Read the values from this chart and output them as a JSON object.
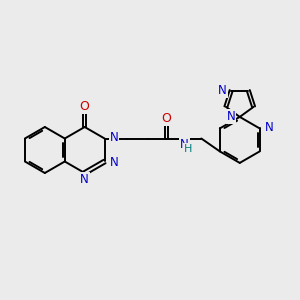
{
  "bg_color": "#ebebeb",
  "bond_color": "#000000",
  "n_color": "#0000cc",
  "o_color": "#cc0000",
  "nh_color": "#008080",
  "lw": 1.4,
  "fs": 8.5,
  "figsize": [
    3.0,
    3.0
  ],
  "dpi": 100,
  "xlim": [
    -1.0,
    9.5
  ],
  "ylim": [
    1.5,
    8.5
  ]
}
